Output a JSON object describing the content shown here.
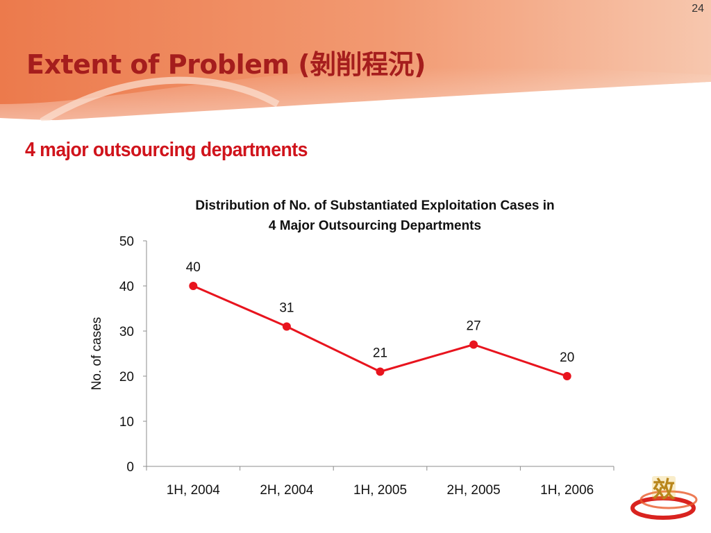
{
  "slide": {
    "page_number": "24",
    "title": "Extent of Problem (剝削程況)",
    "subtitle": "4 major outsourcing departments"
  },
  "colors": {
    "title": "#a51d1d",
    "subtitle": "#d0141c",
    "series_line": "#e8141e",
    "banner": "#ef8a5f"
  },
  "chart_data": {
    "type": "line",
    "title_lines": [
      "Distribution of No. of Substantiated Exploitation Cases in",
      "4 Major Outsourcing Departments"
    ],
    "categories": [
      "1H, 2004",
      "2H, 2004",
      "1H, 2005",
      "2H, 2005",
      "1H, 2006"
    ],
    "series": [
      {
        "values": [
          40,
          31,
          21,
          27,
          20
        ]
      }
    ],
    "ylabel": "No. of cases",
    "xlabel": "",
    "ylim": [
      0,
      50
    ],
    "yticks": [
      0,
      10,
      20,
      30,
      40,
      50
    ],
    "data_labels": true,
    "grid": false,
    "legend": "none"
  }
}
